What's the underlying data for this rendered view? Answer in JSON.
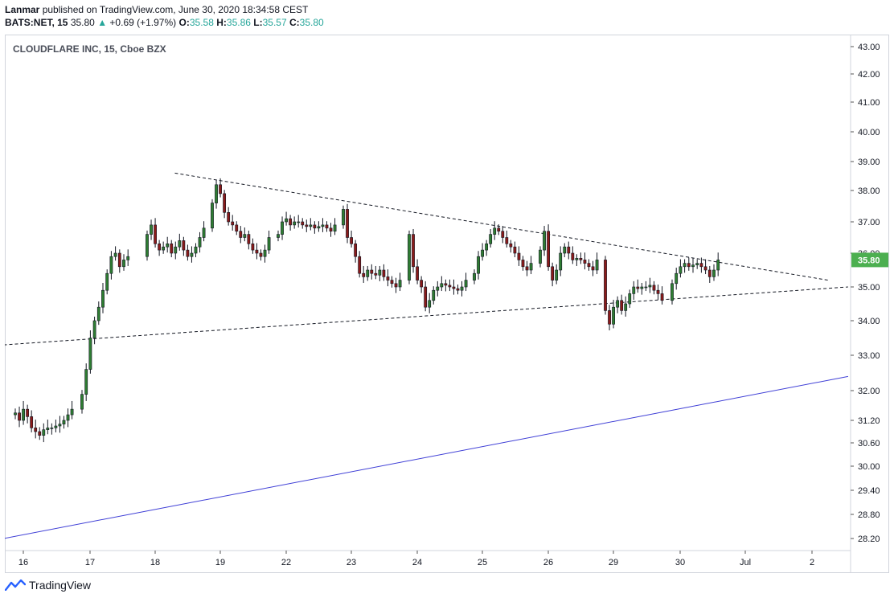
{
  "header": {
    "author": "Lanmar",
    "published": "published on TradingView.com, June 30, 2020 18:34:58 CEST",
    "symbol": "BATS:NET, 15",
    "last": "35.80",
    "change": "+0.69 (+1.97%)",
    "o_label": "O:",
    "o": "35.58",
    "h_label": "H:",
    "h": "35.86",
    "l_label": "L:",
    "l": "35.57",
    "c_label": "C:",
    "c": "35.80"
  },
  "watermark": {
    "label": "TradingView"
  },
  "colors": {
    "up": "#26a69a",
    "down": "#ef5350",
    "candle_up_body": "#2e7d32",
    "candle_down_body": "#8b1a1a",
    "trend_blue": "#3f3fd6",
    "price_label_bg": "#4caf50"
  },
  "chart_data": {
    "type": "candlestick",
    "title": "CLOUDFLARE INC, 15, Cboe BZX",
    "ylim": [
      27.9,
      43.3
    ],
    "y_ticks": [
      "43.00",
      "42.00",
      "41.00",
      "40.00",
      "39.00",
      "38.00",
      "37.00",
      "36.00",
      "35.00",
      "34.00",
      "33.00",
      "32.00",
      "31.20",
      "30.60",
      "30.00",
      "29.40",
      "28.80",
      "28.20"
    ],
    "x_ticks": [
      "16",
      "17",
      "18",
      "19",
      "22",
      "23",
      "24",
      "25",
      "26",
      "29",
      "30",
      "Jul",
      "2"
    ],
    "last_price_label": "35.80",
    "sessions": [
      {
        "x": "16",
        "closes": [
          31.4,
          31.2,
          31.5,
          31.3,
          31.0,
          30.9,
          30.8,
          30.95,
          31.0,
          31.0,
          31.05,
          31.1,
          31.2,
          31.35,
          31.5
        ]
      },
      {
        "x": "17",
        "closes": [
          31.9,
          32.6,
          33.5,
          34.0,
          34.4,
          34.9,
          35.4,
          35.9,
          36.0,
          35.6,
          35.8,
          35.9
        ]
      },
      {
        "x": "18",
        "closes": [
          36.6,
          36.9,
          36.3,
          36.1,
          36.2,
          36.3,
          36.0,
          36.2,
          36.4,
          36.1,
          35.9,
          36.0,
          36.2,
          36.5,
          36.8
        ]
      },
      {
        "x": "19",
        "closes": [
          37.6,
          38.2,
          37.9,
          37.3,
          37.0,
          36.9,
          36.7,
          36.5,
          36.6,
          36.3,
          36.1,
          36.0,
          35.9,
          36.1,
          36.5
        ]
      },
      {
        "x": "22",
        "closes": [
          36.6,
          37.0,
          37.1,
          36.9,
          37.0,
          37.0,
          36.9,
          36.85,
          36.9,
          36.8,
          36.85,
          36.9,
          36.8,
          36.7,
          36.9
        ]
      },
      {
        "x": "23",
        "closes": [
          37.4,
          36.5,
          36.3,
          35.9,
          35.4,
          35.3,
          35.5,
          35.4,
          35.35,
          35.5,
          35.3,
          35.2,
          35.1,
          35.0,
          35.2
        ]
      },
      {
        "x": "24",
        "closes": [
          36.6,
          35.6,
          35.2,
          35.0,
          34.4,
          34.6,
          34.9,
          35.0,
          35.1,
          35.05,
          35.0,
          34.95,
          34.9,
          35.0,
          35.2
        ]
      },
      {
        "x": "25",
        "closes": [
          35.4,
          35.9,
          36.1,
          36.3,
          36.6,
          36.8,
          36.7,
          36.5,
          36.3,
          36.2,
          36.0,
          35.8,
          35.6,
          35.5,
          35.7
        ]
      },
      {
        "x": "26",
        "closes": [
          36.1,
          36.7,
          35.6,
          35.2,
          35.5,
          36.0,
          36.2,
          36.0,
          35.8,
          35.85,
          35.8,
          35.7,
          35.6,
          35.5,
          35.8
        ]
      },
      {
        "x": "29",
        "closes": [
          34.3,
          33.9,
          34.4,
          34.6,
          34.3,
          34.5,
          34.8,
          35.0,
          34.95,
          35.0,
          35.0,
          35.05,
          34.9,
          34.8,
          34.6
        ]
      },
      {
        "x": "30",
        "closes": [
          35.1,
          35.4,
          35.6,
          35.7,
          35.6,
          35.65,
          35.7,
          35.6,
          35.5,
          35.3,
          35.5,
          35.8
        ]
      }
    ],
    "trendlines": [
      {
        "style": "dashed",
        "color": "#131722",
        "x0": "18",
        "x0_offset": 0.3,
        "y0": 38.6,
        "x1": "2",
        "x1_offset": 0.25,
        "y1": 35.2
      },
      {
        "style": "dashed",
        "color": "#131722",
        "x0": "16",
        "x0_offset": -0.3,
        "y0": 33.3,
        "x1": "2",
        "x1_offset": 0.55,
        "y1": 35.0
      },
      {
        "style": "solid",
        "color": "#3f3fd6",
        "x0": "16",
        "x0_offset": -0.3,
        "y0": 28.2,
        "x1": "2",
        "x1_offset": 0.55,
        "y1": 32.4
      }
    ]
  }
}
